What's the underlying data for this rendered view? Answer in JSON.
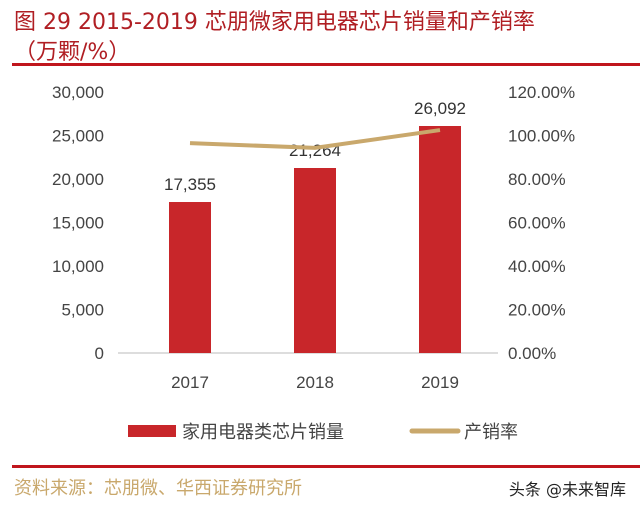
{
  "title_line1": "图 29 2015-2019 芯朋微家用电器芯片销量和产销率",
  "title_line2": "（万颗/%）",
  "source": "资料来源：芯朋微、华西证券研究所",
  "watermark": "头条 @未来智库",
  "chart_data": {
    "type": "bar+line",
    "categories": [
      "2017",
      "2018",
      "2019"
    ],
    "series": [
      {
        "name": "家用电器类芯片销量",
        "type": "bar",
        "axis": "left",
        "values": [
          17355,
          21264,
          26092
        ],
        "labels": [
          "17,355",
          "21,264",
          "26,092"
        ],
        "color": "#c8262a"
      },
      {
        "name": "产销率",
        "type": "line",
        "axis": "right",
        "values": [
          96.5,
          94.3,
          102.5
        ],
        "color": "#c9a86c"
      }
    ],
    "left_axis": {
      "ylim": [
        0,
        30000
      ],
      "ticks": [
        "0",
        "5,000",
        "10,000",
        "15,000",
        "20,000",
        "25,000",
        "30,000"
      ]
    },
    "right_axis": {
      "ylim": [
        0,
        120
      ],
      "ticks": [
        "0.00%",
        "20.00%",
        "40.00%",
        "60.00%",
        "80.00%",
        "100.00%",
        "120.00%"
      ]
    },
    "grid": false,
    "legend": "bottom"
  }
}
